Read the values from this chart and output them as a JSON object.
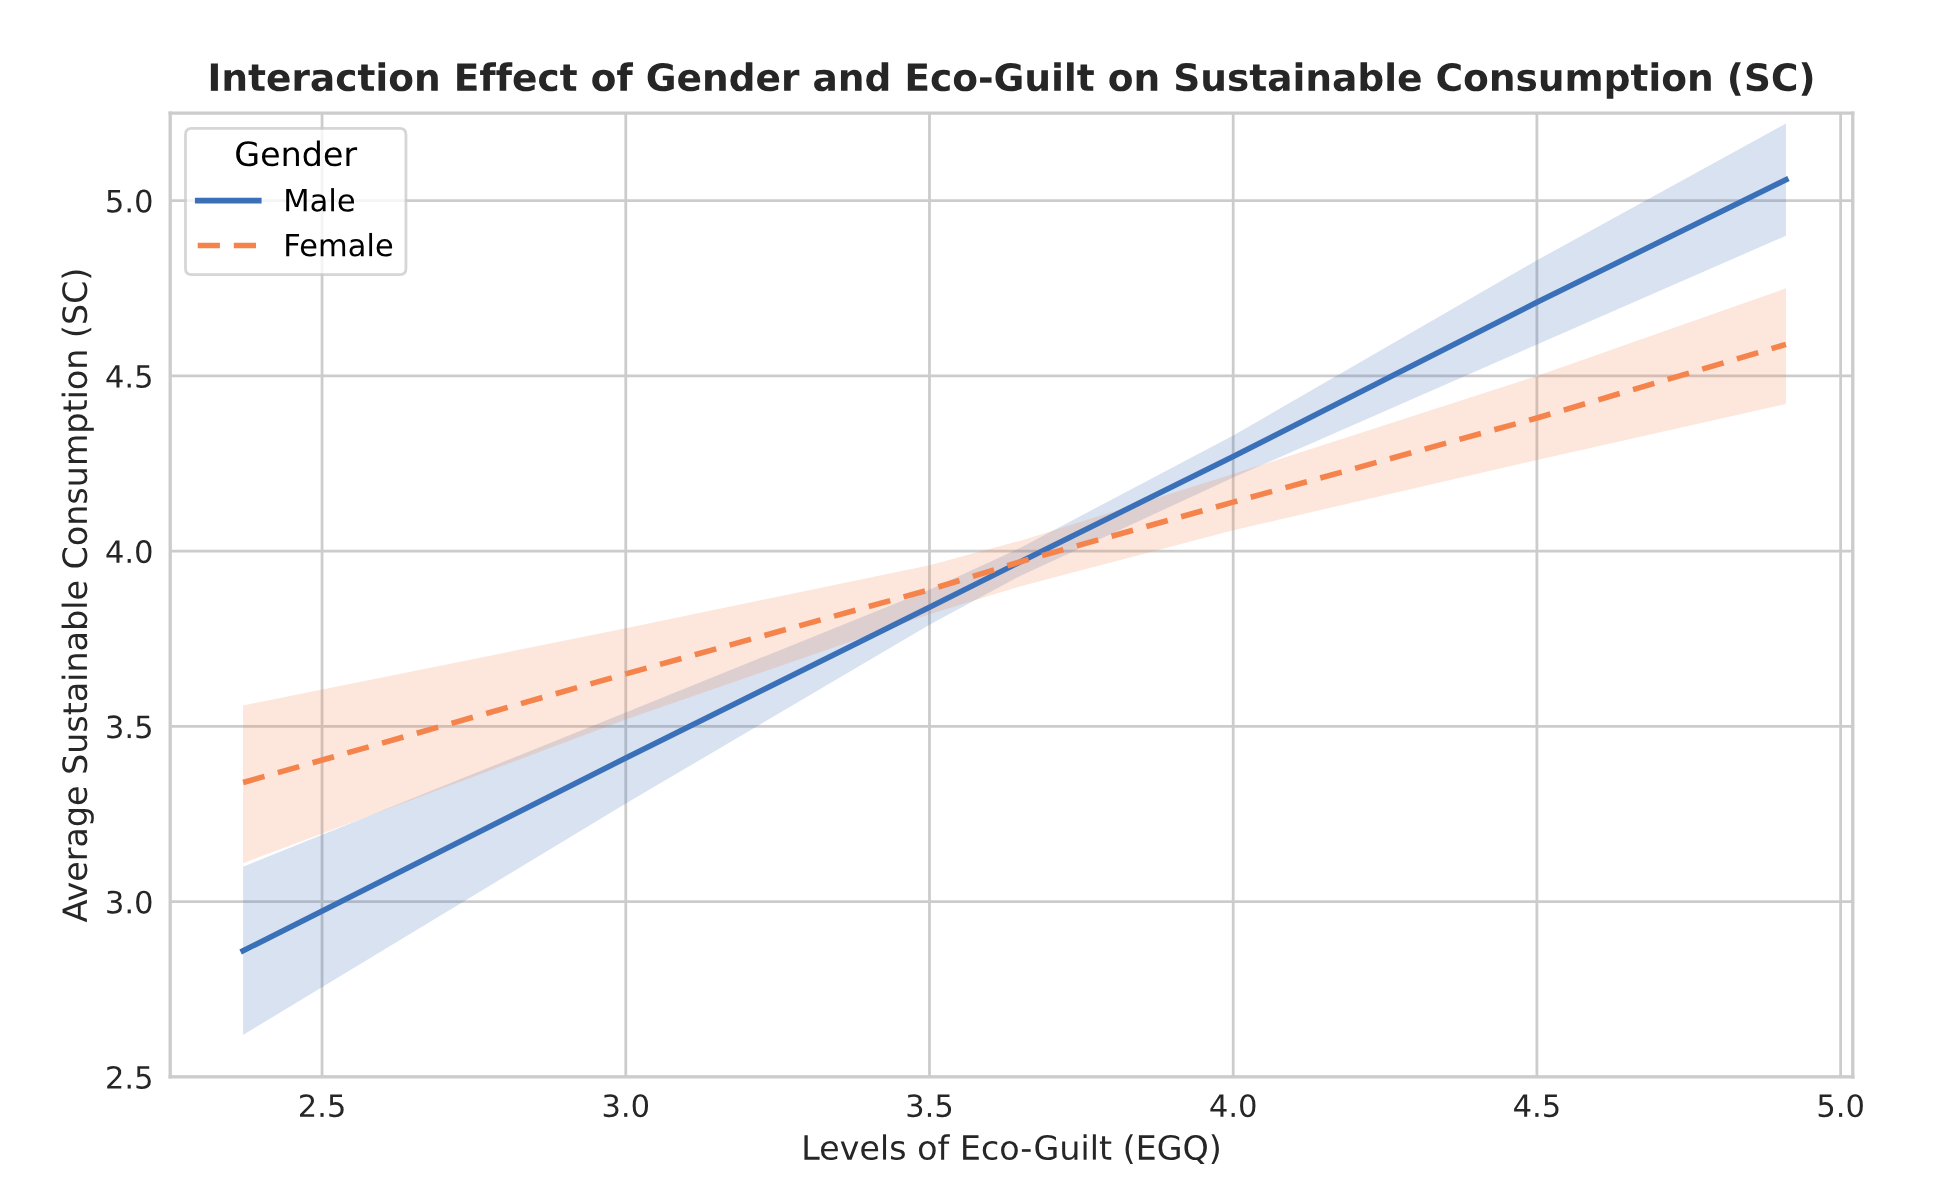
{
  "chart_data": {
    "type": "line",
    "title": "Interaction Effect of Gender and Eco-Guilt on Sustainable Consumption (SC)",
    "xlabel": "Levels of Eco-Guilt (EGQ)",
    "ylabel": "Average Sustainable Consumption (SC)",
    "legend_title": "Gender",
    "legend": "top left",
    "grid": true,
    "x": [
      2.37,
      3.0,
      3.5,
      3.65,
      4.0,
      4.5,
      4.91
    ],
    "xlim": [
      2.25,
      5.02
    ],
    "xticks": [
      2.5,
      {
        "value": 3,
        "label": "3.0"
      },
      3.5,
      {
        "value": 4,
        "label": "4.0"
      },
      4.5,
      {
        "value": 5,
        "label": "5.0"
      }
    ],
    "ylim": [
      2.5,
      5.25
    ],
    "yticks": [
      2.5,
      {
        "value": 3,
        "label": "3.0"
      },
      3.5,
      {
        "value": 4,
        "label": "4.0"
      },
      4.5,
      {
        "value": 5,
        "label": "5.0"
      }
    ],
    "series": [
      {
        "name": "Male",
        "color": "#3a70b8",
        "line_style": "solid",
        "values": [
          2.86,
          3.41,
          3.84,
          3.97,
          4.27,
          4.71,
          5.06
        ],
        "lower": [
          2.62,
          3.28,
          3.79,
          3.93,
          4.21,
          4.59,
          4.9
        ],
        "upper": [
          3.1,
          3.54,
          3.89,
          4.01,
          4.33,
          4.83,
          5.22
        ]
      },
      {
        "name": "Female",
        "color": "#f5844c",
        "line_style": "dashed",
        "values": [
          3.34,
          3.65,
          3.89,
          3.97,
          4.14,
          4.38,
          4.59
        ],
        "lower": [
          3.11,
          3.52,
          3.82,
          3.9,
          4.06,
          4.26,
          4.42
        ],
        "upper": [
          3.56,
          3.78,
          3.96,
          4.03,
          4.22,
          4.5,
          4.75
        ]
      }
    ]
  }
}
